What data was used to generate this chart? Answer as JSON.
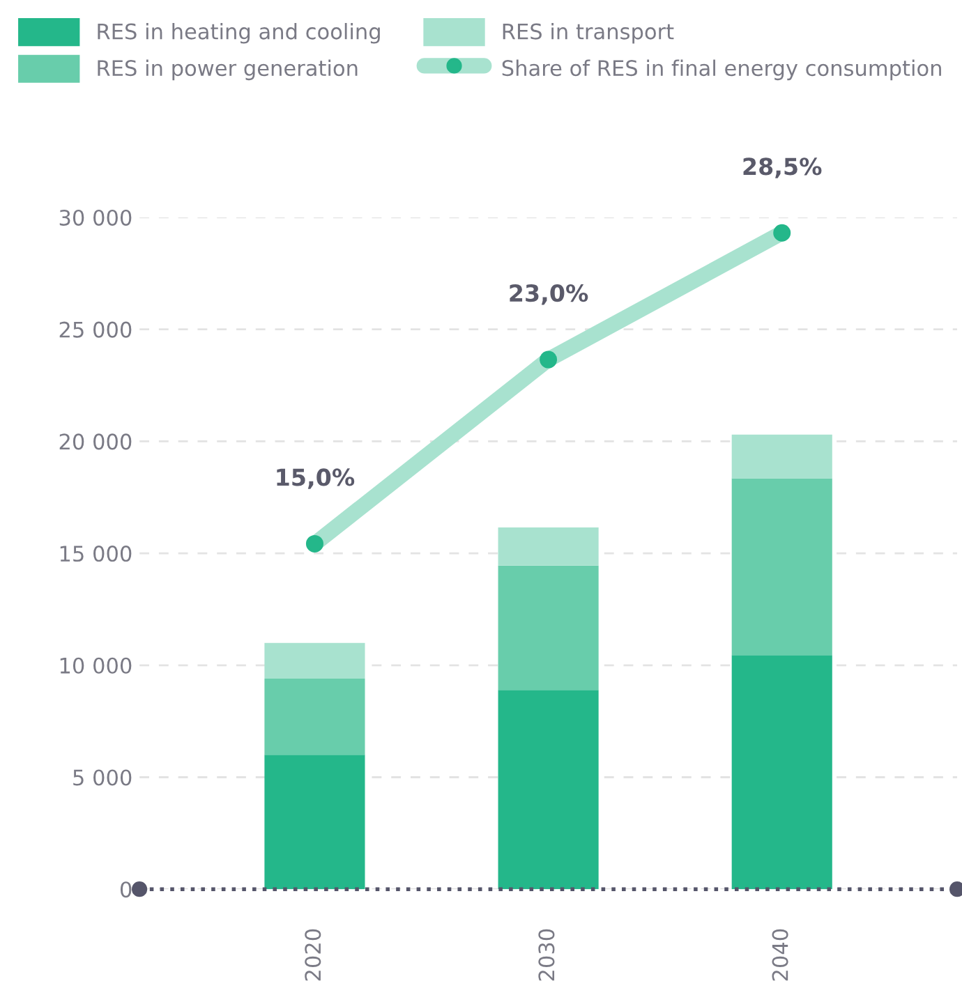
{
  "chart_data": {
    "type": "bar",
    "stacked": true,
    "categories": [
      "2020",
      "2030",
      "2040"
    ],
    "series": [
      {
        "name": "RES in heating and cooling",
        "color": "#24b78a",
        "values": [
          6000,
          8900,
          10450
        ]
      },
      {
        "name": "RES in power generation",
        "color": "#68cdab",
        "values": [
          3400,
          5550,
          7900
        ]
      },
      {
        "name": "RES in transport",
        "color": "#a8e2cf",
        "values": [
          1600,
          1700,
          1950
        ]
      },
      {
        "name": "Share of RES in final energy consumption",
        "type": "line",
        "axis": "y2",
        "color": "#a8e2cf",
        "marker": "circle",
        "values": [
          15.0,
          23.0,
          28.5
        ],
        "value_labels": [
          "15,0%",
          "23,0%",
          "28,5%"
        ]
      }
    ],
    "ylim": [
      0,
      30000
    ],
    "yticks": [
      {
        "value": 0,
        "label": "0"
      },
      {
        "value": 5000,
        "label": "5 000"
      },
      {
        "value": 10000,
        "label": "10 000"
      },
      {
        "value": 15000,
        "label": "15 000"
      },
      {
        "value": 20000,
        "label": "20 000"
      },
      {
        "value": 25000,
        "label": "25 000"
      },
      {
        "value": 30000,
        "label": "30 000"
      }
    ],
    "grid": "y",
    "legend": "top"
  }
}
